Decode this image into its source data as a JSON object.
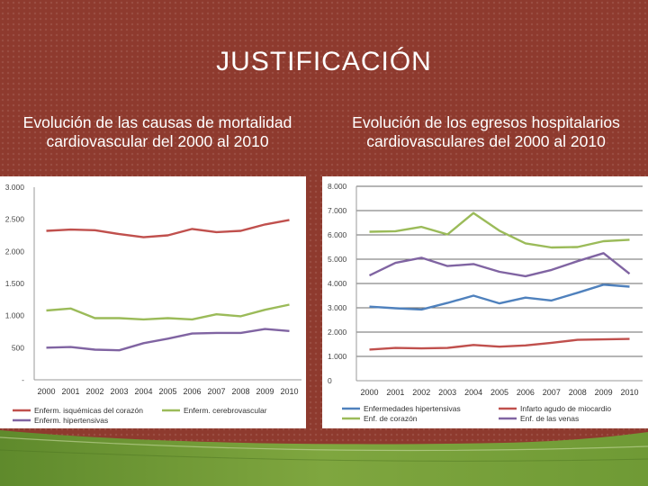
{
  "slide": {
    "title": "JUSTIFICACIÓN",
    "subtitle_left": "Evolución de las causas de mortalidad cardiovascular del 2000 al 2010",
    "subtitle_right": "Evolución de los egresos hospitalarios cardiovasculares del 2000 al 2010",
    "colors": {
      "background": "#8e3a2e",
      "accent_green": "#6f9a35"
    }
  },
  "chart_data": [
    {
      "type": "line",
      "title": "Evolución de las causas de mortalidad cardiovascular del 2000 al 2010",
      "x": [
        "2000",
        "2001",
        "2002",
        "2003",
        "2004",
        "2005",
        "2006",
        "2007",
        "2008",
        "2009",
        "2010"
      ],
      "ylim": [
        0,
        3000
      ],
      "yticks": [
        0,
        500,
        1000,
        1500,
        2000,
        2500,
        3000
      ],
      "ytick_labels": [
        "-",
        "500",
        "1.000",
        "1.500",
        "2.000",
        "2.500",
        "3.000"
      ],
      "legend_position": "bottom",
      "series": [
        {
          "name": "Enferm. isquémicas del corazón",
          "color": "#c0504d",
          "values": [
            2320,
            2340,
            2330,
            2270,
            2220,
            2250,
            2350,
            2300,
            2320,
            2420,
            2490
          ]
        },
        {
          "name": "Enferm. cerebrovascular",
          "color": "#9bbb59",
          "values": [
            1080,
            1110,
            960,
            960,
            940,
            960,
            940,
            1020,
            990,
            1090,
            1170
          ]
        },
        {
          "name": "Enferm. hipertensivas",
          "color": "#8064a2",
          "values": [
            500,
            510,
            470,
            460,
            570,
            640,
            720,
            730,
            730,
            790,
            760
          ]
        }
      ]
    },
    {
      "type": "line",
      "title": "Evolución de los egresos hospitalarios cardiovasculares del 2000 al 2010",
      "x": [
        "2000",
        "2001",
        "2002",
        "2003",
        "2004",
        "2005",
        "2006",
        "2007",
        "2008",
        "2009",
        "2010"
      ],
      "ylim": [
        0,
        8000
      ],
      "yticks": [
        0,
        1000,
        2000,
        3000,
        4000,
        5000,
        6000,
        7000,
        8000
      ],
      "ytick_labels": [
        "0",
        "1.000",
        "2.000",
        "3.000",
        "4.000",
        "5.000",
        "6.000",
        "7.000",
        "8.000"
      ],
      "legend_position": "bottom",
      "series": [
        {
          "name": "Enfermedades hipertensivas",
          "color": "#4f81bd",
          "values": [
            3050,
            2980,
            2930,
            3200,
            3500,
            3180,
            3420,
            3300,
            3620,
            3950,
            3870
          ]
        },
        {
          "name": "Infarto agudo de miocardio",
          "color": "#c0504d",
          "values": [
            1280,
            1350,
            1330,
            1350,
            1470,
            1400,
            1450,
            1560,
            1680,
            1700,
            1720
          ]
        },
        {
          "name": "Enf. de corazón",
          "color": "#9bbb59",
          "values": [
            6130,
            6150,
            6330,
            6020,
            6900,
            6170,
            5650,
            5480,
            5500,
            5740,
            5800
          ]
        },
        {
          "name": "Enf. de las venas",
          "color": "#8064a2",
          "values": [
            4330,
            4850,
            5060,
            4720,
            4800,
            4480,
            4300,
            4560,
            4920,
            5250,
            4400
          ]
        }
      ]
    }
  ]
}
